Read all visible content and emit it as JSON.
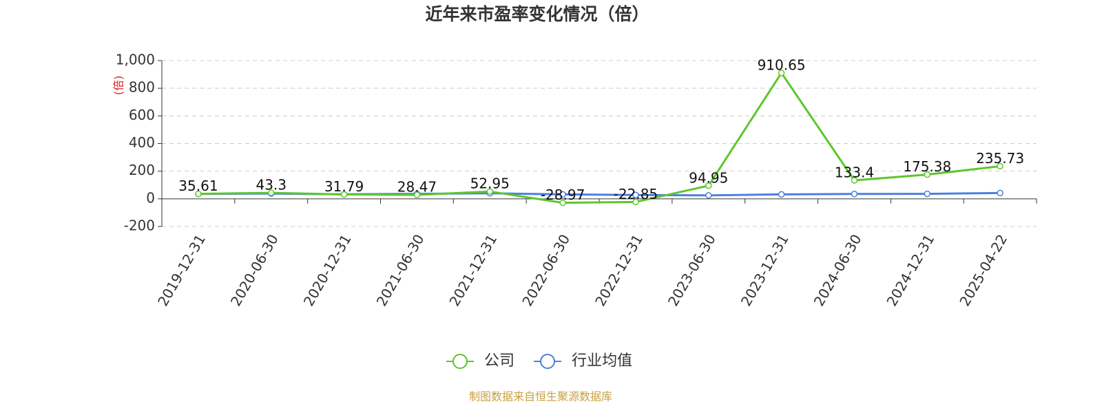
{
  "chart_data": {
    "type": "line",
    "title": "近年来市盈率变化情况（倍）",
    "y_label": "(倍)",
    "source": "制图数据来自恒生聚源数据库",
    "categories": [
      "2019-12-31",
      "2020-06-30",
      "2020-12-31",
      "2021-06-30",
      "2021-12-31",
      "2022-06-30",
      "2022-12-31",
      "2023-06-30",
      "2023-12-31",
      "2024-06-30",
      "2024-12-31",
      "2025-04-22"
    ],
    "series": [
      {
        "name": "公司",
        "color": "#5cc72c",
        "values": [
          35.61,
          43.3,
          31.79,
          28.47,
          52.95,
          -28.97,
          -22.85,
          94.95,
          910.65,
          133.4,
          175.38,
          235.73
        ]
      },
      {
        "name": "行业均值",
        "color": "#4a7fe0",
        "values": [
          35,
          38,
          33,
          36,
          40,
          32,
          28,
          25,
          32,
          35,
          36,
          42
        ]
      }
    ],
    "ylim": [
      -200,
      1000
    ],
    "yticks": [
      -200,
      0,
      200,
      400,
      600,
      {
        "value": 800,
        "label": "800"
      },
      {
        "value": 1000,
        "label": "1,000"
      }
    ],
    "grid": true,
    "legend": "bottom"
  }
}
